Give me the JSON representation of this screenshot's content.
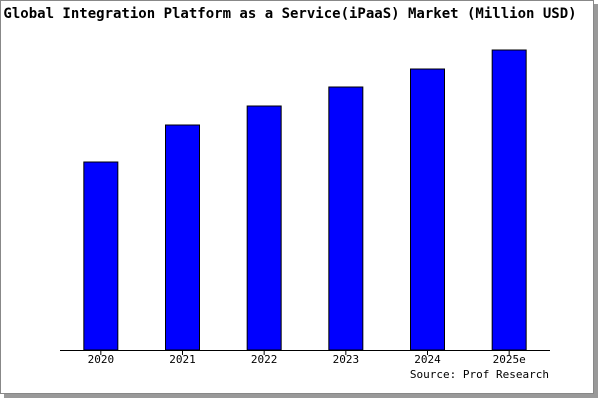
{
  "chart_data": {
    "type": "bar",
    "title": "Global Integration Platform as a Service(iPaaS) Market (Million USD)",
    "categories": [
      "2020",
      "2021",
      "2022",
      "2023",
      "2024",
      "2025e"
    ],
    "values": [
      188,
      225,
      244,
      263,
      281,
      300
    ],
    "color": "#0000ff",
    "ylim": [
      0,
      320
    ],
    "source": "Source: Prof Research"
  }
}
